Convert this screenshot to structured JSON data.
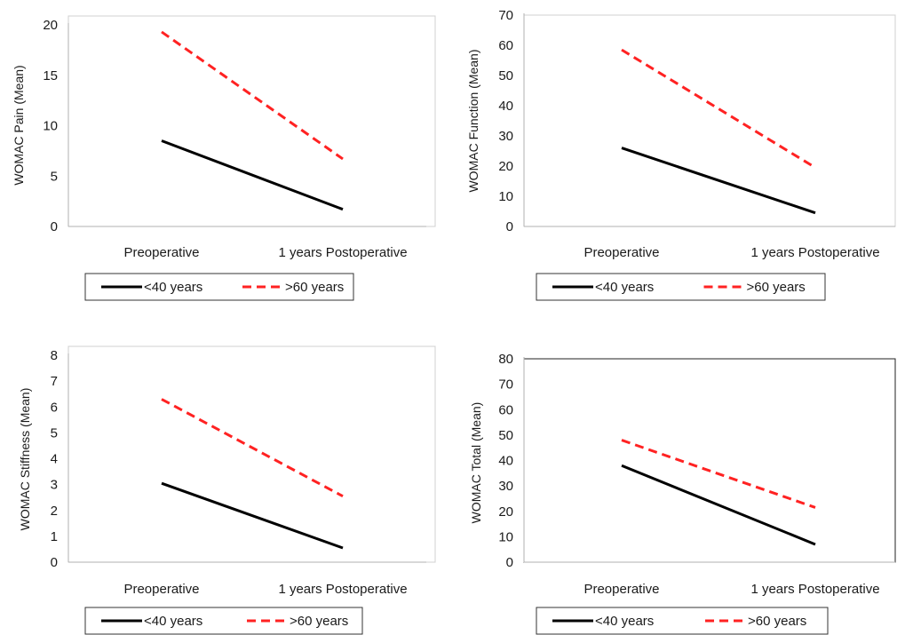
{
  "chart_data": [
    {
      "type": "line",
      "categories": [
        "Preoperative",
        "1 years Postoperative"
      ],
      "series": [
        {
          "name": "<40 years",
          "values": [
            8.5,
            1.7
          ],
          "color": "#000000",
          "dash": "solid"
        },
        {
          "name": ">60 years",
          "values": [
            19.3,
            6.7
          ],
          "color": "#ff2222",
          "dash": "dashed"
        }
      ],
      "ylabel": "WOMAC Pain (Mean)",
      "ylim": [
        0,
        20
      ],
      "yticks": [
        0,
        5,
        10,
        15,
        20
      ],
      "legend": "bottom",
      "grid": false
    },
    {
      "type": "line",
      "categories": [
        "Preoperative",
        "1 years Postoperative"
      ],
      "series": [
        {
          "name": "<40 years",
          "values": [
            26,
            4.5
          ],
          "color": "#000000",
          "dash": "solid"
        },
        {
          "name": ">60 years",
          "values": [
            58.5,
            19.5
          ],
          "color": "#ff2222",
          "dash": "dashed"
        }
      ],
      "ylabel": "WOMAC Function  (Mean)",
      "ylim": [
        0,
        70
      ],
      "yticks": [
        0,
        10,
        20,
        30,
        40,
        50,
        60,
        70
      ],
      "legend": "bottom",
      "grid": false
    },
    {
      "type": "line",
      "categories": [
        "Preoperative",
        "1 years Postoperative"
      ],
      "series": [
        {
          "name": "<40 years",
          "values": [
            3.05,
            0.55
          ],
          "color": "#000000",
          "dash": "solid"
        },
        {
          "name": ">60 years",
          "values": [
            6.3,
            2.55
          ],
          "color": "#ff2222",
          "dash": "dashed"
        }
      ],
      "ylabel": "WOMAC Stiffness  (Mean)",
      "ylim": [
        0,
        8
      ],
      "yticks": [
        0,
        1,
        2,
        3,
        4,
        5,
        6,
        7,
        8
      ],
      "legend": "bottom",
      "grid": false
    },
    {
      "type": "line",
      "categories": [
        "Preoperative",
        "1 years Postoperative"
      ],
      "series": [
        {
          "name": "<40 years",
          "values": [
            38,
            7
          ],
          "color": "#000000",
          "dash": "solid"
        },
        {
          "name": ">60 years",
          "values": [
            48,
            21.5
          ],
          "color": "#ff2222",
          "dash": "dashed"
        }
      ],
      "ylabel": "WOMAC Total (Mean)",
      "ylim": [
        0,
        80
      ],
      "yticks": [
        0,
        10,
        20,
        30,
        40,
        50,
        60,
        70,
        80
      ],
      "legend": "bottom",
      "grid": false
    }
  ]
}
